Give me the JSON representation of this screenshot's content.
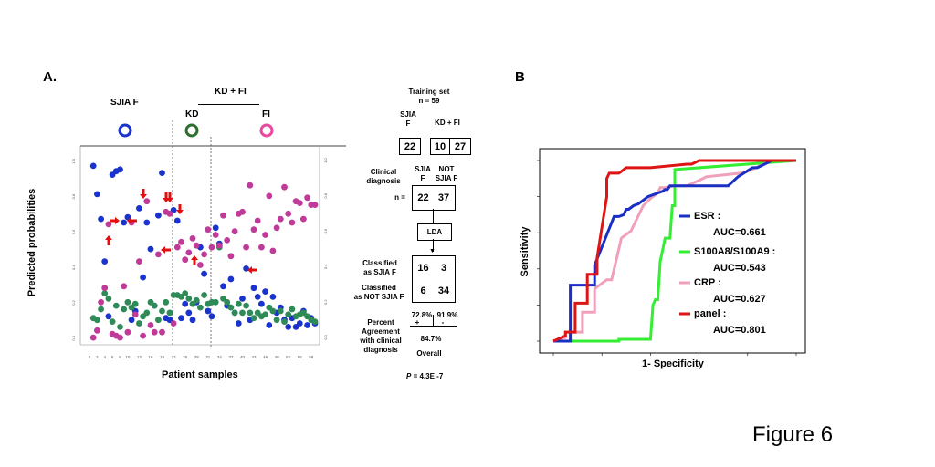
{
  "panel_a": {
    "label": "A.",
    "group_sjia": "SJIA F",
    "group_kdfi": "KD + FI",
    "group_kd": "KD",
    "group_fi": "FI",
    "colors": {
      "sjia": "#1a33cc",
      "kd": "#2e8b57",
      "fi": "#c03a9a",
      "arrow": "#e01010"
    }
  },
  "panel_b": {
    "label": "B"
  },
  "figure_title": "Figure 6",
  "table": {
    "title_line1": "Training set",
    "title_line2": "n = 59",
    "col_sjia_line1": "SJIA",
    "col_sjia_line2": "F",
    "col_kdfi": "KD  + FI",
    "training_counts": [
      "22",
      "10",
      "27"
    ],
    "clinical_line1": "Clinical",
    "clinical_line2": "diagnosis",
    "hdr_sjia_line1": "SJIA",
    "hdr_sjia_line2": "F",
    "hdr_not_line1": "NOT",
    "hdr_not_line2": "SJIA F",
    "n_label": "n =",
    "clinical_counts": [
      "22",
      "37"
    ],
    "lda": "LDA",
    "row1_line1": "Classified",
    "row1_line2": "as SJIA F",
    "row2_line1": "Classified",
    "row2_line2": "as NOT SJIA F",
    "confusion": [
      "16",
      "3",
      "6",
      "34"
    ],
    "pct_left": "72.8%",
    "pct_right": "91.9%",
    "plus": "+",
    "minus": "-",
    "percent_line1": "Percent",
    "percent_line2": "Agreement",
    "percent_line3": "with clinical",
    "percent_line4": "diagnosis",
    "overall_value": "84.7%",
    "overall_label": "Overall",
    "p_label": "P",
    "p_value": "= 4.3E -7"
  },
  "chart_data": [
    {
      "type": "scatter",
      "xlabel": "Patient samples",
      "ylabel": "Predicted probabilities",
      "x_ticks": [
        "0",
        "2",
        "4",
        "6",
        "8",
        "10",
        "13",
        "16",
        "19",
        "22",
        "25",
        "28",
        "31",
        "34",
        "37",
        "40",
        "43",
        "46",
        "49",
        "52",
        "55",
        "58"
      ],
      "y_ticks": [
        "0.0",
        "0.2",
        "0.4",
        "0.6",
        "0.8",
        "1.0"
      ],
      "xlim": [
        0,
        59
      ],
      "ylim": [
        0,
        1
      ],
      "series": [
        {
          "points": [
            [
              1,
              0.98
            ],
            [
              2,
              0.82
            ],
            [
              3,
              0.68
            ],
            [
              4,
              0.44
            ],
            [
              5,
              0.13
            ],
            [
              6,
              0.93
            ],
            [
              7,
              0.95
            ],
            [
              8,
              0.96
            ],
            [
              9,
              0.66
            ],
            [
              10,
              0.69
            ],
            [
              11,
              0.11
            ],
            [
              12,
              0.16
            ],
            [
              13,
              0.74
            ],
            [
              14,
              0.35
            ],
            [
              15,
              0.66
            ],
            [
              16,
              0.51
            ],
            [
              17,
              0.19
            ],
            [
              18,
              0.7
            ],
            [
              19,
              0.94
            ],
            [
              20,
              0.12
            ],
            [
              21,
              0.11
            ],
            [
              22,
              0.73
            ],
            [
              23,
              0.67
            ],
            [
              24,
              0.12
            ],
            [
              25,
              0.2
            ],
            [
              26,
              0.15
            ],
            [
              27,
              0.11
            ],
            [
              28,
              0.21
            ],
            [
              29,
              0.52
            ],
            [
              30,
              0.37
            ],
            [
              31,
              0.16
            ],
            [
              32,
              0.13
            ],
            [
              33,
              0.63
            ],
            [
              34,
              0.54
            ],
            [
              35,
              0.3
            ],
            [
              36,
              0.19
            ],
            [
              37,
              0.34
            ],
            [
              38,
              0.15
            ],
            [
              39,
              0.09
            ],
            [
              40,
              0.23
            ],
            [
              41,
              0.4
            ],
            [
              42,
              0.11
            ],
            [
              43,
              0.29
            ],
            [
              44,
              0.24
            ],
            [
              45,
              0.2
            ],
            [
              46,
              0.27
            ],
            [
              47,
              0.08
            ],
            [
              48,
              0.24
            ],
            [
              49,
              0.15
            ],
            [
              50,
              0.18
            ],
            [
              51,
              0.11
            ],
            [
              52,
              0.07
            ],
            [
              53,
              0.12
            ],
            [
              54,
              0.07
            ],
            [
              55,
              0.09
            ],
            [
              56,
              0.16
            ],
            [
              57,
              0.08
            ],
            [
              58,
              0.12
            ],
            [
              59,
              0.09
            ]
          ]
        },
        {
          "points": [
            [
              1,
              0.12
            ],
            [
              2,
              0.11
            ],
            [
              3,
              0.17
            ],
            [
              4,
              0.26
            ],
            [
              5,
              0.23
            ],
            [
              6,
              0.1
            ],
            [
              7,
              0.19
            ],
            [
              8,
              0.07
            ],
            [
              9,
              0.17
            ],
            [
              10,
              0.21
            ],
            [
              11,
              0.18
            ],
            [
              12,
              0.2
            ],
            [
              13,
              0.09
            ],
            [
              14,
              0.13
            ],
            [
              15,
              0.15
            ],
            [
              16,
              0.21
            ],
            [
              17,
              0.19
            ],
            [
              18,
              0.11
            ],
            [
              19,
              0.16
            ],
            [
              20,
              0.21
            ],
            [
              21,
              0.15
            ],
            [
              22,
              0.25
            ],
            [
              23,
              0.25
            ],
            [
              24,
              0.24
            ],
            [
              25,
              0.26
            ],
            [
              26,
              0.23
            ],
            [
              27,
              0.2
            ],
            [
              28,
              0.22
            ],
            [
              29,
              0.18
            ],
            [
              30,
              0.25
            ],
            [
              31,
              0.2
            ],
            [
              32,
              0.21
            ],
            [
              33,
              0.21
            ],
            [
              34,
              0.52
            ],
            [
              35,
              0.23
            ],
            [
              36,
              0.21
            ],
            [
              37,
              0.18
            ],
            [
              38,
              0.15
            ],
            [
              39,
              0.2
            ],
            [
              40,
              0.15
            ],
            [
              41,
              0.19
            ],
            [
              42,
              0.15
            ],
            [
              43,
              0.12
            ],
            [
              44,
              0.15
            ],
            [
              45,
              0.13
            ],
            [
              46,
              0.14
            ],
            [
              47,
              0.18
            ],
            [
              48,
              0.16
            ],
            [
              49,
              0.11
            ],
            [
              50,
              0.16
            ],
            [
              51,
              0.1
            ],
            [
              52,
              0.14
            ],
            [
              53,
              0.17
            ],
            [
              54,
              0.13
            ],
            [
              55,
              0.14
            ],
            [
              56,
              0.15
            ],
            [
              57,
              0.13
            ],
            [
              58,
              0.11
            ],
            [
              59,
              0.1
            ]
          ]
        },
        {
          "points": [
            [
              1,
              0.01
            ],
            [
              2,
              0.05
            ],
            [
              3,
              0.21
            ],
            [
              4,
              0.29
            ],
            [
              5,
              0.65
            ],
            [
              6,
              0.03
            ],
            [
              7,
              0.02
            ],
            [
              8,
              0.01
            ],
            [
              9,
              0.3
            ],
            [
              10,
              0.04
            ],
            [
              11,
              0.66
            ],
            [
              12,
              0.14
            ],
            [
              13,
              0.44
            ],
            [
              14,
              0.02
            ],
            [
              15,
              0.78
            ],
            [
              16,
              0.08
            ],
            [
              17,
              0.04
            ],
            [
              18,
              0.48
            ],
            [
              19,
              0.04
            ],
            [
              20,
              0.72
            ],
            [
              21,
              0.71
            ],
            [
              22,
              0.09
            ],
            [
              23,
              0.52
            ],
            [
              24,
              0.55
            ],
            [
              25,
              0.45
            ],
            [
              26,
              0.49
            ],
            [
              27,
              0.57
            ],
            [
              28,
              0.53
            ],
            [
              29,
              0.42
            ],
            [
              30,
              0.48
            ],
            [
              31,
              0.62
            ],
            [
              32,
              0.52
            ],
            [
              33,
              0.59
            ],
            [
              34,
              0.53
            ],
            [
              35,
              0.7
            ],
            [
              36,
              0.56
            ],
            [
              37,
              0.47
            ],
            [
              38,
              0.61
            ],
            [
              39,
              0.71
            ],
            [
              40,
              0.72
            ],
            [
              41,
              0.52
            ],
            [
              42,
              0.87
            ],
            [
              43,
              0.62
            ],
            [
              44,
              0.67
            ],
            [
              45,
              0.52
            ],
            [
              46,
              0.59
            ],
            [
              47,
              0.81
            ],
            [
              48,
              0.5
            ],
            [
              49,
              0.63
            ],
            [
              50,
              0.68
            ],
            [
              51,
              0.86
            ],
            [
              52,
              0.71
            ],
            [
              53,
              0.66
            ],
            [
              54,
              0.78
            ],
            [
              55,
              0.77
            ],
            [
              56,
              0.68
            ],
            [
              57,
              0.8
            ],
            [
              58,
              0.76
            ],
            [
              59,
              0.76
            ]
          ]
        }
      ],
      "annotations": "red arrows mark misclassified samples"
    },
    {
      "type": "line",
      "xlabel": "1- Specificity",
      "ylabel": "Sensitivity",
      "xlim": [
        0,
        1
      ],
      "ylim": [
        0,
        1
      ],
      "series": [
        {
          "name": "ESR :",
          "auc_label": "AUC=0.661",
          "color": "#1a2fc4",
          "x": [
            0,
            0.07,
            0.07,
            0.17,
            0.17,
            0.25,
            0.27,
            0.29,
            0.3,
            0.31,
            0.33,
            0.35,
            0.37,
            0.39,
            0.43,
            0.45,
            0.46,
            0.47,
            0.48,
            0.5,
            0.53,
            0.56,
            0.6,
            0.62,
            0.72,
            0.76,
            0.82,
            0.84,
            0.9,
            1.0
          ],
          "y": [
            0,
            0,
            0.31,
            0.31,
            0.42,
            0.69,
            0.69,
            0.7,
            0.73,
            0.73,
            0.75,
            0.76,
            0.78,
            0.8,
            0.82,
            0.83,
            0.84,
            0.84,
            0.86,
            0.86,
            0.86,
            0.86,
            0.86,
            0.86,
            0.86,
            0.91,
            0.96,
            0.96,
            1.0,
            1.0
          ]
        },
        {
          "name": "S100A8/S100A9 :",
          "auc_label": "AUC=0.543",
          "color": "#33ee33",
          "x": [
            0,
            0.27,
            0.27,
            0.34,
            0.37,
            0.4,
            0.41,
            0.42,
            0.43,
            0.44,
            0.46,
            0.48,
            0.49,
            0.5,
            0.5,
            1.0
          ],
          "y": [
            0,
            0,
            0.01,
            0.01,
            0.01,
            0.01,
            0.2,
            0.23,
            0.23,
            0.44,
            0.57,
            0.57,
            0.75,
            0.75,
            0.95,
            1.0
          ]
        },
        {
          "name": "CRP :",
          "auc_label": "AUC=0.627",
          "color": "#f0a0b8",
          "x": [
            0,
            0.05,
            0.05,
            0.12,
            0.12,
            0.17,
            0.17,
            0.22,
            0.24,
            0.28,
            0.28,
            0.32,
            0.37,
            0.4,
            0.43,
            0.44,
            0.46,
            0.5,
            0.55,
            0.6,
            0.6,
            0.63,
            0.77,
            0.8,
            0.9,
            1.0
          ],
          "y": [
            0,
            0.02,
            0.05,
            0.05,
            0.16,
            0.16,
            0.29,
            0.34,
            0.34,
            0.57,
            0.57,
            0.61,
            0.75,
            0.79,
            0.82,
            0.85,
            0.85,
            0.86,
            0.86,
            0.89,
            0.89,
            0.91,
            0.93,
            0.94,
            1.0,
            1.0
          ]
        },
        {
          "name": "panel :",
          "auc_label": "AUC=0.801",
          "color": "#dd1515",
          "x": [
            0,
            0.05,
            0.05,
            0.09,
            0.09,
            0.14,
            0.14,
            0.18,
            0.18,
            0.22,
            0.22,
            0.23,
            0.24,
            0.27,
            0.3,
            0.4,
            0.55,
            0.57,
            0.6,
            0.75,
            0.9,
            1.0
          ],
          "y": [
            0,
            0.03,
            0.05,
            0.05,
            0.21,
            0.21,
            0.37,
            0.37,
            0.46,
            0.8,
            0.9,
            0.93,
            0.93,
            0.93,
            0.96,
            0.96,
            0.98,
            0.98,
            1.0,
            1.0,
            1.0,
            1.0
          ]
        }
      ]
    }
  ]
}
